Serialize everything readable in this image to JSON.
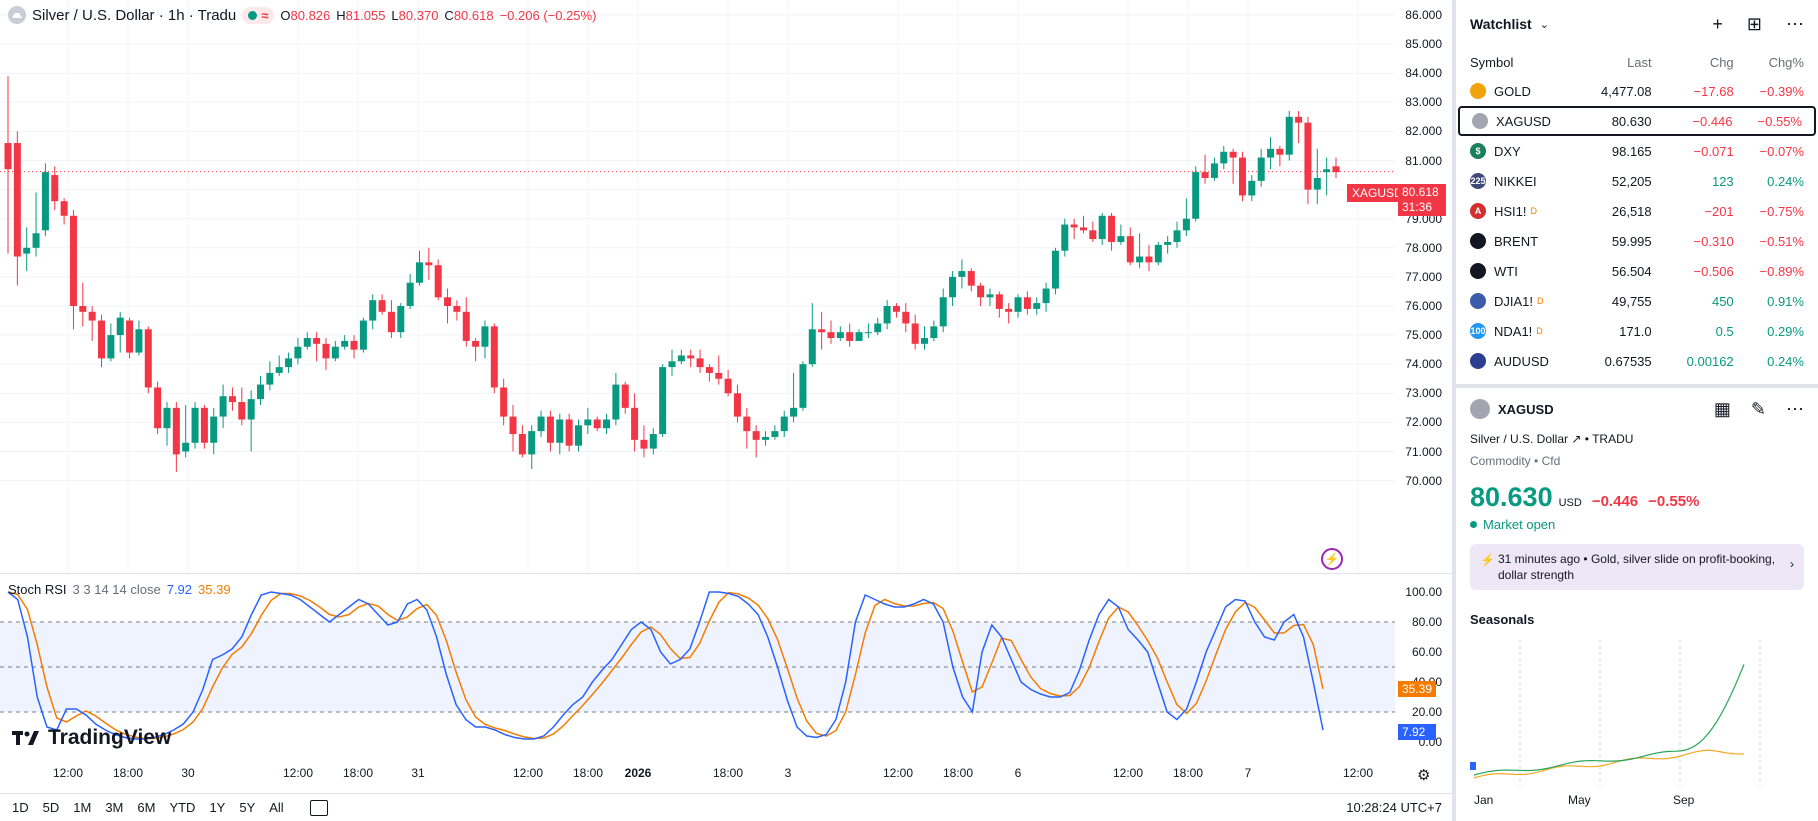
{
  "header": {
    "symbol_title": "Silver / U.S. Dollar · 1h · Tradu",
    "ohlc": [
      {
        "label": "O",
        "value": "80.826"
      },
      {
        "label": "H",
        "value": "81.055"
      },
      {
        "label": "L",
        "value": "80.370"
      },
      {
        "label": "C",
        "value": "80.618"
      }
    ],
    "change": "−0.206 (−0.25%)",
    "approx_symbol": "≈"
  },
  "price_axis": [
    "86.000",
    "85.000",
    "84.000",
    "83.000",
    "82.000",
    "81.000",
    "80.000",
    "79.000",
    "78.000",
    "77.000",
    "76.000",
    "75.000",
    "74.000",
    "73.000",
    "72.000",
    "71.000",
    "70.000"
  ],
  "price_tag": {
    "symbol": "XAGUSD",
    "price": "80.618",
    "countdown": "31:36"
  },
  "rsi": {
    "name": "Stoch RSI",
    "params": "3 3 14 14 close",
    "k_value": "7.92",
    "d_value": "35.39",
    "axis": [
      "100.00",
      "80.00",
      "60.00",
      "40.00",
      "20.00",
      "0.00"
    ]
  },
  "time_axis": [
    "12:00",
    "18:00",
    "30",
    "12:00",
    "18:00",
    "31",
    "12:00",
    "18:00",
    "2026",
    "18:00",
    "3",
    "12:00",
    "18:00",
    "6",
    "12:00",
    "18:00",
    "7",
    "12:00"
  ],
  "bottom_bar": {
    "ranges": [
      "1D",
      "5D",
      "1M",
      "3M",
      "6M",
      "YTD",
      "1Y",
      "5Y",
      "All"
    ],
    "clock": "10:28:24 UTC+7"
  },
  "logo": "TradingView",
  "watchlist": {
    "title": "Watchlist",
    "columns": [
      "Symbol",
      "Last",
      "Chg",
      "Chg%"
    ],
    "rows": [
      {
        "symbol": "GOLD",
        "last": "4,477.08",
        "chg": "−17.68",
        "chgp": "−0.39%",
        "dir": "down",
        "icon_color": "#f0a30a",
        "icon_text": "",
        "badge": ""
      },
      {
        "symbol": "XAGUSD",
        "last": "80.630",
        "chg": "−0.446",
        "chgp": "−0.55%",
        "dir": "down",
        "icon_color": "#a3a6b0",
        "icon_text": "",
        "badge": "",
        "selected": true
      },
      {
        "symbol": "DXY",
        "last": "98.165",
        "chg": "−0.071",
        "chgp": "−0.07%",
        "dir": "down",
        "icon_color": "#1b7f5b",
        "icon_text": "$",
        "badge": ""
      },
      {
        "symbol": "NIKKEI",
        "last": "52,205",
        "chg": "123",
        "chgp": "0.24%",
        "dir": "up",
        "icon_color": "#3f4a7a",
        "icon_text": "225",
        "badge": ""
      },
      {
        "symbol": "HSI1!",
        "last": "26,518",
        "chg": "−201",
        "chgp": "−0.75%",
        "dir": "down",
        "icon_color": "#d32f2f",
        "icon_text": "A",
        "badge": "D"
      },
      {
        "symbol": "BRENT",
        "last": "59.995",
        "chg": "−0.310",
        "chgp": "−0.51%",
        "dir": "down",
        "icon_color": "#131722",
        "icon_text": "",
        "badge": ""
      },
      {
        "symbol": "WTI",
        "last": "56.504",
        "chg": "−0.506",
        "chgp": "−0.89%",
        "dir": "down",
        "icon_color": "#131722",
        "icon_text": "",
        "badge": ""
      },
      {
        "symbol": "DJIA1!",
        "last": "49,755",
        "chg": "450",
        "chgp": "0.91%",
        "dir": "up",
        "icon_color": "#3c5ba9",
        "icon_text": "",
        "badge": "D"
      },
      {
        "symbol": "NDA1!",
        "last": "171.0",
        "chg": "0.5",
        "chgp": "0.29%",
        "dir": "up",
        "icon_color": "#2196f3",
        "icon_text": "100",
        "badge": "D"
      },
      {
        "symbol": "AUDUSD",
        "last": "0.67535",
        "chg": "0.00162",
        "chgp": "0.24%",
        "dir": "up",
        "icon_color": "#2a3f8f",
        "icon_text": "",
        "badge": ""
      }
    ]
  },
  "detail": {
    "symbol": "XAGUSD",
    "name": "Silver / U.S. Dollar",
    "exchange": "TRADU",
    "category": "Commodity",
    "subcategory": "Cfd",
    "price": "80.630",
    "currency": "USD",
    "change": "−0.446",
    "change_pct": "−0.55%",
    "market_status": "Market open",
    "news_time": "31 minutes ago",
    "news_headline": "Gold, silver slide on profit-booking, dollar strength",
    "seasonals_title": "Seasonals",
    "season_months": [
      "Jan",
      "May",
      "Sep"
    ]
  },
  "colors": {
    "up": "#089981",
    "down": "#f23645",
    "k_line": "#2962ff",
    "d_line": "#f57c00"
  },
  "candles": [
    [
      81.6,
      80.7,
      83.9,
      77.8
    ],
    [
      81.6,
      77.7,
      82.0,
      76.7
    ],
    [
      77.8,
      78.0,
      78.7,
      77.2
    ],
    [
      78.0,
      78.5,
      79.9,
      77.7
    ],
    [
      78.6,
      80.6,
      80.9,
      78.4
    ],
    [
      80.5,
      79.6,
      80.8,
      79.3
    ],
    [
      79.6,
      79.1,
      79.7,
      78.8
    ],
    [
      79.1,
      76.0,
      79.3,
      75.2
    ],
    [
      76.0,
      75.8,
      76.8,
      75.3
    ],
    [
      75.8,
      75.5,
      76.0,
      74.8
    ],
    [
      75.5,
      74.2,
      75.7,
      73.9
    ],
    [
      74.2,
      75.0,
      75.4,
      74.1
    ],
    [
      75.0,
      75.6,
      75.8,
      74.4
    ],
    [
      75.5,
      74.4,
      75.6,
      74.2
    ],
    [
      74.4,
      75.2,
      75.5,
      74.3
    ],
    [
      75.2,
      73.2,
      75.3,
      73.0
    ],
    [
      73.2,
      71.8,
      73.4,
      71.6
    ],
    [
      71.8,
      72.5,
      72.7,
      71.2
    ],
    [
      72.5,
      70.9,
      72.7,
      70.3
    ],
    [
      71.0,
      71.3,
      72.6,
      70.8
    ],
    [
      71.3,
      72.5,
      72.7,
      71.1
    ],
    [
      72.5,
      71.3,
      72.6,
      71.1
    ],
    [
      71.3,
      72.2,
      72.5,
      70.9
    ],
    [
      72.2,
      72.9,
      73.3,
      71.8
    ],
    [
      72.9,
      72.7,
      73.2,
      72.4
    ],
    [
      72.7,
      72.1,
      73.2,
      71.9
    ],
    [
      72.1,
      72.8,
      73.1,
      71.0
    ],
    [
      72.8,
      73.3,
      73.6,
      72.6
    ],
    [
      73.3,
      73.7,
      74.1,
      73.1
    ],
    [
      73.7,
      73.9,
      74.3,
      73.6
    ],
    [
      73.9,
      74.2,
      74.4,
      73.7
    ],
    [
      74.2,
      74.6,
      74.9,
      74.0
    ],
    [
      74.6,
      74.9,
      75.1,
      74.5
    ],
    [
      74.9,
      74.7,
      75.1,
      74.1
    ],
    [
      74.7,
      74.2,
      74.9,
      73.8
    ],
    [
      74.2,
      74.6,
      74.8,
      74.1
    ],
    [
      74.6,
      74.8,
      75.0,
      74.5
    ],
    [
      74.8,
      74.5,
      75.0,
      74.2
    ],
    [
      74.5,
      75.5,
      75.6,
      74.4
    ],
    [
      75.5,
      76.2,
      76.4,
      75.2
    ],
    [
      76.2,
      75.8,
      76.4,
      75.7
    ],
    [
      75.8,
      75.1,
      76.2,
      74.9
    ],
    [
      75.1,
      76.0,
      76.1,
      74.9
    ],
    [
      76.0,
      76.8,
      77.1,
      75.9
    ],
    [
      76.8,
      77.5,
      77.9,
      76.7
    ],
    [
      77.5,
      77.4,
      78.0,
      76.9
    ],
    [
      77.4,
      76.3,
      77.6,
      76.2
    ],
    [
      76.3,
      76.0,
      76.6,
      75.4
    ],
    [
      76.0,
      75.8,
      76.2,
      75.5
    ],
    [
      75.8,
      74.8,
      76.3,
      74.6
    ],
    [
      74.8,
      74.6,
      74.9,
      74.1
    ],
    [
      74.6,
      75.3,
      75.5,
      74.2
    ],
    [
      75.3,
      73.2,
      75.4,
      73.0
    ],
    [
      73.2,
      72.2,
      73.5,
      71.9
    ],
    [
      72.2,
      71.6,
      72.6,
      71.0
    ],
    [
      71.6,
      70.9,
      71.9,
      70.8
    ],
    [
      70.9,
      71.7,
      71.9,
      70.4
    ],
    [
      71.7,
      72.2,
      72.4,
      71.5
    ],
    [
      72.2,
      71.3,
      72.4,
      71.0
    ],
    [
      71.3,
      72.1,
      72.3,
      70.9
    ],
    [
      72.1,
      71.2,
      72.3,
      71.0
    ],
    [
      71.2,
      71.9,
      72.1,
      71.0
    ],
    [
      71.9,
      72.1,
      72.5,
      71.6
    ],
    [
      72.1,
      71.8,
      72.2,
      71.7
    ],
    [
      71.8,
      72.1,
      72.3,
      71.6
    ],
    [
      72.1,
      73.3,
      73.7,
      71.9
    ],
    [
      73.3,
      72.5,
      73.4,
      72.3
    ],
    [
      72.5,
      71.4,
      73.0,
      71.0
    ],
    [
      71.4,
      71.1,
      71.9,
      70.8
    ],
    [
      71.1,
      71.6,
      71.8,
      70.9
    ],
    [
      71.6,
      73.9,
      74.0,
      71.5
    ],
    [
      73.9,
      74.1,
      74.5,
      73.6
    ],
    [
      74.1,
      74.3,
      74.5,
      74.0
    ],
    [
      74.3,
      74.2,
      74.5,
      73.9
    ],
    [
      74.2,
      73.9,
      74.5,
      73.7
    ],
    [
      73.9,
      73.7,
      74.0,
      73.4
    ],
    [
      73.7,
      73.5,
      74.3,
      73.3
    ],
    [
      73.5,
      73.0,
      73.8,
      72.9
    ],
    [
      73.0,
      72.2,
      73.3,
      72.0
    ],
    [
      72.2,
      71.7,
      72.5,
      71.1
    ],
    [
      71.7,
      71.4,
      71.9,
      70.8
    ],
    [
      71.4,
      71.5,
      71.7,
      71.2
    ],
    [
      71.5,
      71.7,
      71.9,
      71.4
    ],
    [
      71.7,
      72.2,
      72.4,
      71.5
    ],
    [
      72.2,
      72.5,
      73.7,
      72.0
    ],
    [
      72.5,
      74.0,
      74.1,
      72.4
    ],
    [
      74.0,
      75.2,
      76.1,
      73.9
    ],
    [
      75.2,
      75.1,
      75.8,
      74.5
    ],
    [
      75.1,
      74.9,
      75.5,
      74.7
    ],
    [
      74.9,
      75.1,
      75.3,
      74.8
    ],
    [
      75.1,
      74.8,
      75.4,
      74.6
    ],
    [
      74.8,
      75.1,
      75.2,
      74.8
    ],
    [
      75.1,
      75.1,
      75.4,
      74.9
    ],
    [
      75.1,
      75.4,
      75.6,
      75.0
    ],
    [
      75.4,
      76.0,
      76.2,
      75.2
    ],
    [
      76.0,
      75.8,
      76.1,
      75.6
    ],
    [
      75.8,
      75.4,
      76.1,
      75.1
    ],
    [
      75.4,
      74.7,
      75.7,
      74.5
    ],
    [
      74.7,
      74.9,
      75.3,
      74.5
    ],
    [
      74.9,
      75.3,
      75.5,
      74.8
    ],
    [
      75.3,
      76.3,
      76.6,
      75.1
    ],
    [
      76.3,
      77.0,
      77.2,
      76.0
    ],
    [
      77.0,
      77.2,
      77.6,
      76.6
    ],
    [
      77.2,
      76.7,
      77.3,
      76.5
    ],
    [
      76.7,
      76.3,
      76.8,
      76.0
    ],
    [
      76.3,
      76.4,
      76.6,
      76.0
    ],
    [
      76.4,
      75.9,
      76.5,
      75.6
    ],
    [
      75.9,
      75.8,
      76.1,
      75.4
    ],
    [
      75.8,
      76.3,
      76.4,
      75.6
    ],
    [
      76.3,
      75.9,
      76.5,
      75.7
    ],
    [
      75.9,
      76.1,
      76.3,
      75.7
    ],
    [
      76.1,
      76.6,
      76.8,
      75.8
    ],
    [
      76.6,
      77.9,
      78.0,
      76.4
    ],
    [
      77.9,
      78.8,
      79.0,
      77.7
    ],
    [
      78.8,
      78.7,
      79.0,
      78.3
    ],
    [
      78.7,
      78.6,
      79.1,
      78.5
    ],
    [
      78.6,
      78.3,
      78.9,
      78.2
    ],
    [
      78.3,
      79.1,
      79.2,
      78.1
    ],
    [
      79.1,
      78.2,
      79.2,
      77.9
    ],
    [
      78.2,
      78.4,
      78.8,
      78.1
    ],
    [
      78.4,
      77.5,
      78.7,
      77.4
    ],
    [
      77.5,
      77.7,
      78.5,
      77.3
    ],
    [
      77.7,
      77.5,
      78.1,
      77.2
    ],
    [
      77.5,
      78.1,
      78.2,
      77.4
    ],
    [
      78.1,
      78.2,
      78.4,
      77.8
    ],
    [
      78.2,
      78.6,
      78.9,
      78.0
    ],
    [
      78.6,
      79.0,
      79.7,
      78.4
    ],
    [
      79.0,
      80.6,
      80.8,
      78.9
    ],
    [
      80.6,
      80.4,
      81.2,
      80.2
    ],
    [
      80.4,
      80.9,
      81.1,
      80.3
    ],
    [
      80.9,
      81.3,
      81.5,
      80.7
    ],
    [
      81.3,
      81.1,
      81.4,
      80.2
    ],
    [
      81.1,
      79.8,
      81.3,
      79.6
    ],
    [
      79.8,
      80.3,
      80.5,
      79.6
    ],
    [
      80.3,
      81.1,
      81.4,
      80.1
    ],
    [
      81.1,
      81.4,
      81.8,
      80.7
    ],
    [
      81.4,
      81.2,
      81.5,
      80.8
    ],
    [
      81.2,
      82.5,
      82.7,
      81.0
    ],
    [
      82.5,
      82.3,
      82.7,
      81.6
    ],
    [
      82.3,
      80.0,
      82.5,
      79.5
    ],
    [
      80.0,
      80.4,
      81.4,
      79.5
    ],
    [
      80.6,
      80.7,
      81.1,
      79.8
    ],
    [
      80.8,
      80.6,
      81.1,
      80.4
    ]
  ],
  "rsi_k": [
    100,
    95,
    70,
    30,
    10,
    8,
    22,
    22,
    18,
    12,
    8,
    5,
    3,
    2,
    2,
    3,
    5,
    8,
    12,
    20,
    35,
    55,
    58,
    62,
    70,
    85,
    98,
    100,
    99,
    98,
    95,
    90,
    85,
    80,
    85,
    90,
    95,
    92,
    85,
    78,
    80,
    92,
    95,
    88,
    70,
    45,
    25,
    15,
    10,
    10,
    8,
    5,
    3,
    2,
    2,
    4,
    10,
    18,
    25,
    30,
    40,
    48,
    55,
    65,
    75,
    80,
    75,
    60,
    52,
    55,
    62,
    80,
    100,
    100,
    99,
    97,
    92,
    85,
    70,
    50,
    28,
    10,
    4,
    3,
    5,
    15,
    40,
    80,
    98,
    95,
    92,
    90,
    90,
    92,
    95,
    92,
    80,
    50,
    30,
    20,
    60,
    78,
    70,
    55,
    40,
    35,
    32,
    30,
    30,
    33,
    48,
    68,
    85,
    95,
    90,
    75,
    68,
    60,
    40,
    20,
    15,
    22,
    40,
    60,
    75,
    90,
    95,
    94,
    80,
    70,
    68,
    80,
    85,
    70,
    40,
    10
  ]
}
